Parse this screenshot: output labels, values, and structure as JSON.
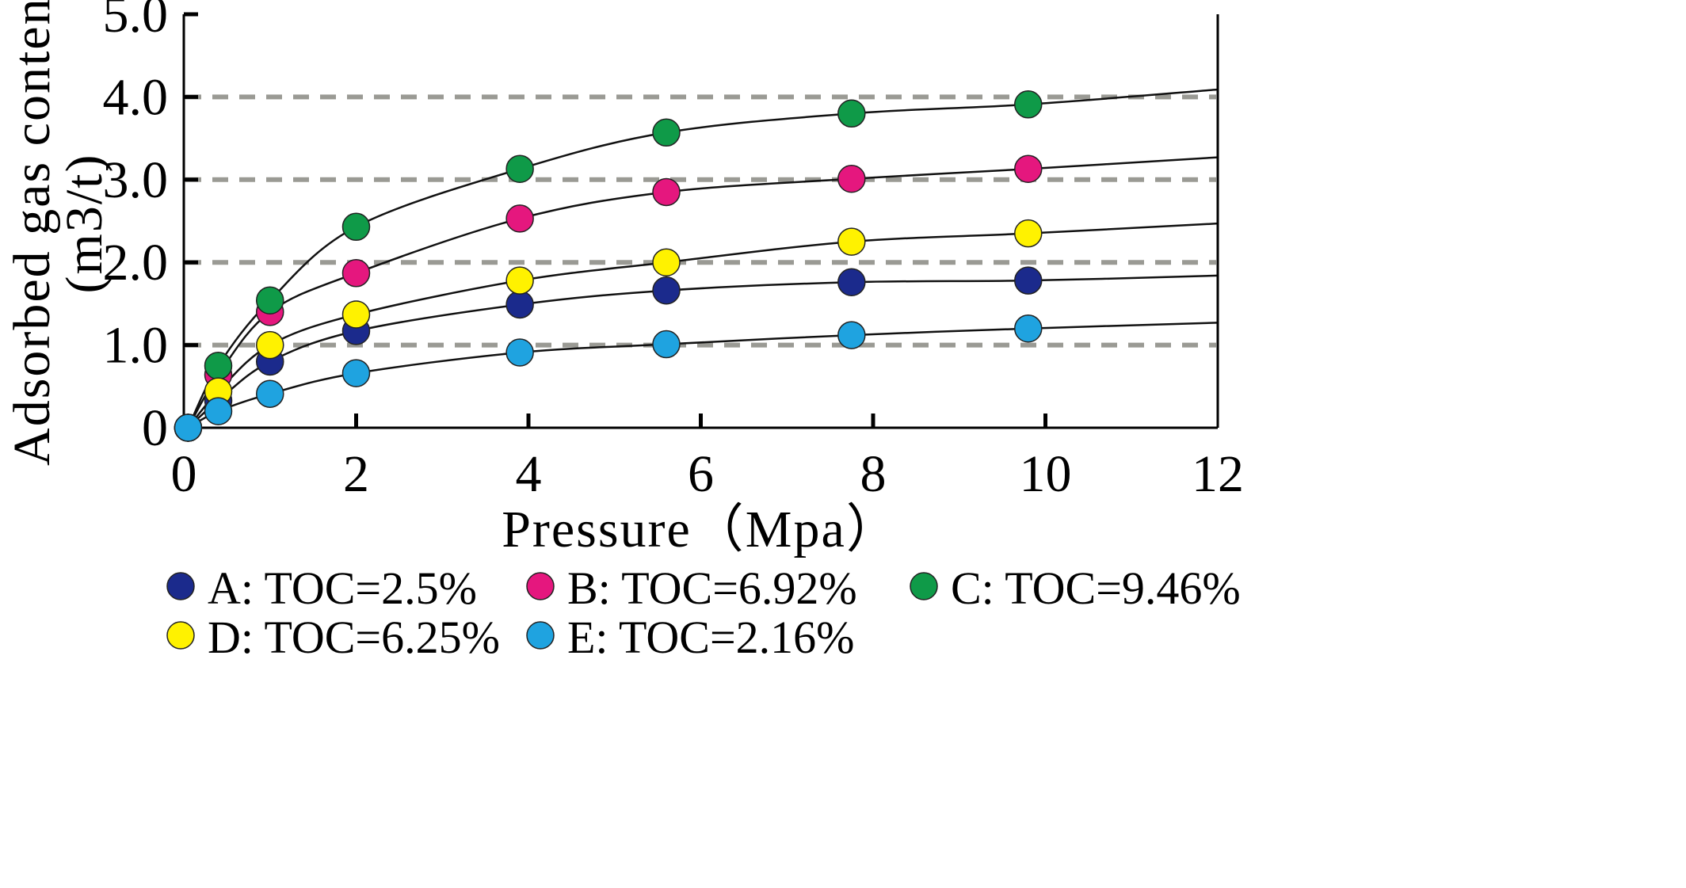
{
  "chart_data": {
    "type": "scatter",
    "xlabel": "Pressure（Mpa）",
    "ylabel_line1": "Adsorbed  gas  content",
    "ylabel_line2": "(m3/t)",
    "xlim": [
      0,
      12
    ],
    "ylim": [
      0,
      5
    ],
    "x_ticks": [
      0,
      2,
      4,
      6,
      8,
      10,
      12
    ],
    "x_tick_labels": [
      "0",
      "2",
      "4",
      "6",
      "8",
      "10",
      "12"
    ],
    "y_ticks": [
      0,
      1,
      2,
      3,
      4,
      5
    ],
    "y_tick_labels": [
      "0",
      "1.0",
      "2.0",
      "3.0",
      "4.0",
      "5.0"
    ],
    "grid": "horizontal dashed at 1.0, 2.0, 3.0, 4.0",
    "legend_position": "bottom",
    "series": [
      {
        "name": "A: TOC=2.5%",
        "color": "#1b2a8c",
        "x": [
          0.05,
          0.4,
          1.0,
          2.0,
          3.9,
          5.6,
          7.75,
          9.8
        ],
        "y": [
          0.0,
          0.33,
          0.8,
          1.17,
          1.49,
          1.66,
          1.76,
          1.78
        ],
        "curve": [
          [
            0.05,
            0.0
          ],
          [
            0.4,
            0.33
          ],
          [
            1.0,
            0.8
          ],
          [
            2.0,
            1.17
          ],
          [
            3.9,
            1.49
          ],
          [
            5.6,
            1.66
          ],
          [
            7.75,
            1.76
          ],
          [
            9.8,
            1.78
          ],
          [
            12.0,
            1.84
          ]
        ]
      },
      {
        "name": "B: TOC=6.92%",
        "color": "#e5177e",
        "x": [
          0.05,
          0.4,
          1.0,
          2.0,
          3.9,
          5.6,
          7.75,
          9.8
        ],
        "y": [
          0.0,
          0.64,
          1.4,
          1.87,
          2.53,
          2.85,
          3.01,
          3.13
        ],
        "curve": [
          [
            0.05,
            0.0
          ],
          [
            0.4,
            0.64
          ],
          [
            1.0,
            1.4
          ],
          [
            2.0,
            1.87
          ],
          [
            3.9,
            2.53
          ],
          [
            5.6,
            2.85
          ],
          [
            7.75,
            3.01
          ],
          [
            9.8,
            3.13
          ],
          [
            12.0,
            3.27
          ]
        ]
      },
      {
        "name": "C: TOC=9.46%",
        "color": "#0f9a48",
        "x": [
          0.05,
          0.4,
          1.0,
          2.0,
          3.9,
          5.6,
          7.75,
          9.8
        ],
        "y": [
          0.0,
          0.75,
          1.54,
          2.43,
          3.13,
          3.57,
          3.8,
          3.91
        ],
        "curve": [
          [
            0.05,
            0.0
          ],
          [
            0.4,
            0.75
          ],
          [
            1.0,
            1.54
          ],
          [
            2.0,
            2.43
          ],
          [
            3.9,
            3.13
          ],
          [
            5.6,
            3.57
          ],
          [
            7.75,
            3.8
          ],
          [
            9.8,
            3.91
          ],
          [
            12.0,
            4.09
          ]
        ]
      },
      {
        "name": "D: TOC=6.25%",
        "color": "#fff200",
        "x": [
          0.05,
          0.4,
          1.0,
          2.0,
          3.9,
          5.6,
          7.75,
          9.8
        ],
        "y": [
          0.0,
          0.44,
          1.0,
          1.37,
          1.78,
          2.0,
          2.25,
          2.35
        ],
        "curve": [
          [
            0.05,
            0.0
          ],
          [
            0.4,
            0.44
          ],
          [
            1.0,
            1.0
          ],
          [
            2.0,
            1.37
          ],
          [
            3.9,
            1.78
          ],
          [
            5.6,
            2.0
          ],
          [
            7.75,
            2.25
          ],
          [
            9.8,
            2.35
          ],
          [
            12.0,
            2.47
          ]
        ]
      },
      {
        "name": "E: TOC=2.16%",
        "color": "#1fa3e0",
        "x": [
          0.05,
          0.4,
          1.0,
          2.0,
          3.9,
          5.6,
          7.75,
          9.8
        ],
        "y": [
          0.0,
          0.2,
          0.41,
          0.66,
          0.91,
          1.01,
          1.12,
          1.2
        ],
        "curve": [
          [
            0.05,
            0.0
          ],
          [
            0.4,
            0.2
          ],
          [
            1.0,
            0.41
          ],
          [
            2.0,
            0.66
          ],
          [
            3.9,
            0.91
          ],
          [
            5.6,
            1.01
          ],
          [
            7.75,
            1.12
          ],
          [
            9.8,
            1.2
          ],
          [
            12.0,
            1.27
          ]
        ]
      }
    ]
  }
}
